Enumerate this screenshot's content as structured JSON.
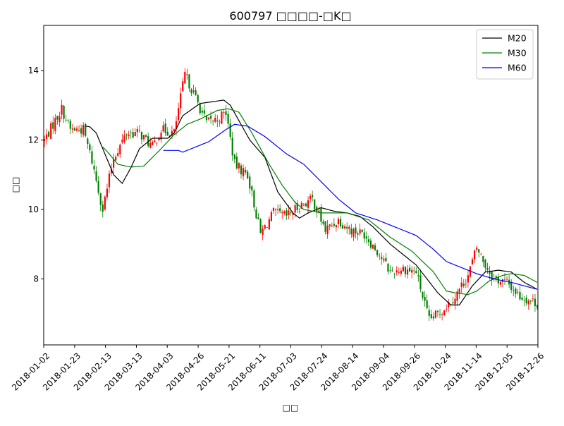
{
  "chart_data": {
    "type": "candlestick",
    "title": "600797 □□□□-□K□",
    "xlabel": "□□",
    "ylabel": "□□",
    "ylim": [
      6.1,
      15.3
    ],
    "yticks": [
      8,
      10,
      12,
      14
    ],
    "xticks": [
      "2018-01-02",
      "2018-01-23",
      "2018-02-13",
      "2018-03-13",
      "2018-04-03",
      "2018-04-26",
      "2018-05-21",
      "2018-06-11",
      "2018-07-03",
      "2018-07-24",
      "2018-08-14",
      "2018-09-04",
      "2018-09-26",
      "2018-10-24",
      "2018-11-14",
      "2018-12-05",
      "2018-12-26"
    ],
    "up_color": "#ff0000",
    "down_color": "#008000",
    "legend_position": "top-right",
    "price_anchors": [
      [
        0,
        12.0
      ],
      [
        8,
        12.9
      ],
      [
        12,
        12.3
      ],
      [
        18,
        12.3
      ],
      [
        22,
        11.4
      ],
      [
        27,
        10.0
      ],
      [
        32,
        11.5
      ],
      [
        38,
        12.2
      ],
      [
        44,
        12.2
      ],
      [
        50,
        11.8
      ],
      [
        54,
        12.3
      ],
      [
        60,
        12.2
      ],
      [
        65,
        13.9
      ],
      [
        70,
        13.2
      ],
      [
        75,
        12.5
      ],
      [
        80,
        12.6
      ],
      [
        84,
        12.8
      ],
      [
        88,
        11.3
      ],
      [
        94,
        11.0
      ],
      [
        100,
        9.3
      ],
      [
        106,
        9.9
      ],
      [
        112,
        9.8
      ],
      [
        118,
        10.1
      ],
      [
        124,
        10.3
      ],
      [
        130,
        9.4
      ],
      [
        136,
        9.7
      ],
      [
        142,
        9.4
      ],
      [
        148,
        9.3
      ],
      [
        154,
        8.8
      ],
      [
        160,
        8.2
      ],
      [
        166,
        8.3
      ],
      [
        172,
        8.2
      ],
      [
        178,
        6.8
      ],
      [
        184,
        7.1
      ],
      [
        190,
        7.5
      ],
      [
        196,
        8.1
      ],
      [
        200,
        8.9
      ],
      [
        204,
        8.4
      ],
      [
        208,
        8.0
      ],
      [
        214,
        7.9
      ],
      [
        220,
        7.5
      ],
      [
        228,
        7.3
      ]
    ],
    "series": [
      {
        "name": "M20",
        "color": "#000000",
        "anchors": [
          [
            19,
            12.4
          ],
          [
            21,
            12.38
          ],
          [
            24,
            12.2
          ],
          [
            28,
            11.6
          ],
          [
            32,
            11.0
          ],
          [
            36,
            10.75
          ],
          [
            40,
            11.2
          ],
          [
            44,
            11.75
          ],
          [
            50,
            12.05
          ],
          [
            57,
            12.05
          ],
          [
            60,
            12.2
          ],
          [
            64,
            12.7
          ],
          [
            72,
            13.05
          ],
          [
            83,
            13.15
          ],
          [
            86,
            13.0
          ],
          [
            95,
            12.0
          ],
          [
            102,
            11.5
          ],
          [
            108,
            10.5
          ],
          [
            115,
            9.9
          ],
          [
            118,
            9.75
          ],
          [
            122,
            9.9
          ],
          [
            128,
            10.05
          ],
          [
            134,
            9.95
          ],
          [
            140,
            9.9
          ],
          [
            146,
            9.8
          ],
          [
            152,
            9.5
          ],
          [
            160,
            9.0
          ],
          [
            172,
            8.4
          ],
          [
            182,
            7.6
          ],
          [
            188,
            7.25
          ],
          [
            192,
            7.25
          ],
          [
            198,
            7.8
          ],
          [
            204,
            8.2
          ],
          [
            210,
            8.25
          ],
          [
            216,
            8.2
          ],
          [
            222,
            7.9
          ],
          [
            228,
            7.7
          ]
        ]
      },
      {
        "name": "M30",
        "color": "#008000",
        "anchors": [
          [
            27,
            11.8
          ],
          [
            30,
            11.6
          ],
          [
            34,
            11.3
          ],
          [
            40,
            11.22
          ],
          [
            46,
            11.25
          ],
          [
            54,
            11.75
          ],
          [
            60,
            12.15
          ],
          [
            66,
            12.45
          ],
          [
            72,
            12.6
          ],
          [
            80,
            12.85
          ],
          [
            85,
            12.9
          ],
          [
            90,
            12.8
          ],
          [
            96,
            12.2
          ],
          [
            104,
            11.3
          ],
          [
            110,
            10.7
          ],
          [
            116,
            10.2
          ],
          [
            120,
            10.0
          ],
          [
            128,
            9.9
          ],
          [
            140,
            9.9
          ],
          [
            150,
            9.7
          ],
          [
            160,
            9.2
          ],
          [
            170,
            8.8
          ],
          [
            180,
            8.2
          ],
          [
            186,
            7.65
          ],
          [
            190,
            7.6
          ],
          [
            196,
            7.55
          ],
          [
            200,
            7.65
          ],
          [
            206,
            7.95
          ],
          [
            212,
            8.1
          ],
          [
            216,
            8.15
          ],
          [
            222,
            8.1
          ],
          [
            228,
            7.9
          ]
        ]
      },
      {
        "name": "M60",
        "color": "#0000ff",
        "anchors": [
          [
            55,
            11.7
          ],
          [
            62,
            11.7
          ],
          [
            64,
            11.65
          ],
          [
            70,
            11.8
          ],
          [
            76,
            11.95
          ],
          [
            84,
            12.3
          ],
          [
            88,
            12.45
          ],
          [
            94,
            12.4
          ],
          [
            102,
            12.1
          ],
          [
            112,
            11.6
          ],
          [
            120,
            11.3
          ],
          [
            128,
            10.8
          ],
          [
            136,
            10.3
          ],
          [
            144,
            9.9
          ],
          [
            154,
            9.7
          ],
          [
            164,
            9.45
          ],
          [
            172,
            9.25
          ],
          [
            180,
            8.85
          ],
          [
            186,
            8.5
          ],
          [
            192,
            8.35
          ],
          [
            200,
            8.15
          ],
          [
            208,
            8.0
          ],
          [
            216,
            7.9
          ],
          [
            228,
            7.7
          ]
        ]
      }
    ]
  }
}
